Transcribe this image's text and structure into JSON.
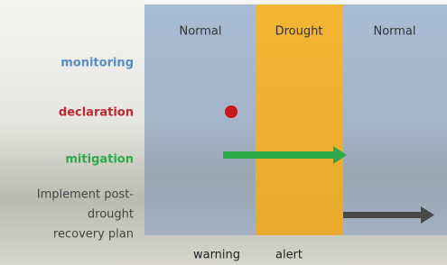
{
  "columns": [
    "Normal",
    "Drought",
    "Normal"
  ],
  "rows": {
    "monitoring": "monitoring",
    "declaration": "declaration",
    "mitigation": "mitigation",
    "recovery": [
      "Implement post-",
      "drought",
      "recovery plan"
    ]
  },
  "timeline": [
    "warning",
    "alert"
  ]
}
